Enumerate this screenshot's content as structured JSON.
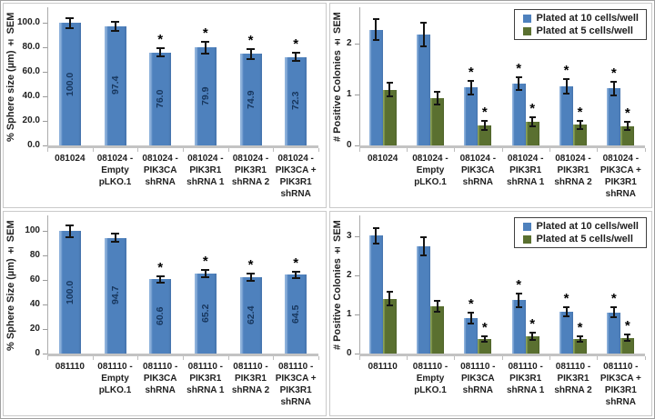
{
  "chart_data": [
    {
      "id": "sphere-081024",
      "type": "bar",
      "ylabel": "% Sphere size (µm) ± SEM",
      "ymax": 110,
      "grid": false,
      "legend": false,
      "yticks": [
        {
          "label": "100.0",
          "v": 100
        },
        {
          "label": "80.0",
          "v": 80
        },
        {
          "label": "60.0",
          "v": 60
        },
        {
          "label": "40.0",
          "v": 40
        },
        {
          "label": "20.0",
          "v": 20
        },
        {
          "label": "0.0",
          "v": 0
        }
      ],
      "categories": [
        "081024",
        "081024 -\nEmpty\npLKO.1",
        "081024 -\nPIK3CA\nshRNA",
        "081024 -\nPIK3R1\nshRNA 1",
        "081024 -\nPIK3R1\nshRNA 2",
        "081024 -\nPIK3CA +\nPIK3R1\nshRNA"
      ],
      "series": [
        {
          "color": "#4E81BD",
          "color_class": "blue",
          "values": [
            100.0,
            97.4,
            76.0,
            79.9,
            74.9,
            72.3
          ],
          "errors": [
            4.0,
            3.5,
            3.5,
            4.5,
            4.0,
            3.2
          ],
          "sig": [
            false,
            false,
            true,
            true,
            true,
            true
          ],
          "value_labels": [
            "100.0",
            "97.4",
            "76.0",
            "79.9",
            "74.9",
            "72.3"
          ]
        }
      ]
    },
    {
      "id": "colonies-081024",
      "type": "bar",
      "ylabel": "# Positive Colonies ± SEM",
      "ymax": 2.65,
      "grid": false,
      "legend": true,
      "legend_position": "top-right",
      "yticks": [
        {
          "label": "2",
          "v": 2
        },
        {
          "label": "1",
          "v": 1
        },
        {
          "label": "0",
          "v": 0
        }
      ],
      "categories": [
        "081024",
        "081024 -\nEmpty\npLKO.1",
        "081024 -\nPIK3CA\nshRNA",
        "081024 -\nPIK3R1\nshRNA 1",
        "081024 -\nPIK3R1\nshRNA 2",
        "081024 -\nPIK3CA +\nPIK3R1\nshRNA"
      ],
      "series": [
        {
          "name": "Plated at 10 cells/well",
          "color": "#4E81BD",
          "color_class": "blue",
          "values": [
            2.28,
            2.18,
            1.14,
            1.22,
            1.16,
            1.12
          ],
          "errors": [
            0.2,
            0.23,
            0.13,
            0.13,
            0.14,
            0.13
          ],
          "sig": [
            false,
            false,
            true,
            true,
            true,
            true
          ]
        },
        {
          "name": "Plated at 5 cells/well",
          "color": "#5A7030",
          "color_class": "green",
          "values": [
            1.1,
            0.93,
            0.4,
            0.47,
            0.41,
            0.38
          ],
          "errors": [
            0.13,
            0.12,
            0.09,
            0.09,
            0.08,
            0.08
          ],
          "sig": [
            false,
            false,
            true,
            true,
            true,
            true
          ]
        }
      ]
    },
    {
      "id": "sphere-081110",
      "type": "bar",
      "ylabel": "% Sphere Size (µm) ± SEM",
      "ymax": 110,
      "grid": false,
      "legend": false,
      "yticks": [
        {
          "label": "100",
          "v": 100
        },
        {
          "label": "80",
          "v": 80
        },
        {
          "label": "60",
          "v": 60
        },
        {
          "label": "40",
          "v": 40
        },
        {
          "label": "20",
          "v": 20
        },
        {
          "label": "0",
          "v": 0
        }
      ],
      "categories": [
        "081110",
        "081110 -\nEmpty\npLKO.1",
        "081110 -\nPIK3CA\nshRNA",
        "081110 -\nPIK3R1\nshRNA 1",
        "081110 -\nPIK3R1\nshRNA 2",
        "081110 -\nPIK3CA +\nPIK3R1\nshRNA"
      ],
      "series": [
        {
          "color": "#4E81BD",
          "color_class": "blue",
          "values": [
            100.0,
            94.7,
            60.6,
            65.2,
            62.4,
            64.5
          ],
          "errors": [
            4.5,
            3.5,
            2.5,
            3.0,
            3.0,
            2.5
          ],
          "sig": [
            false,
            false,
            true,
            true,
            true,
            true
          ],
          "value_labels": [
            "100.0",
            "94.7",
            "60.6",
            "65.2",
            "62.4",
            "64.5"
          ]
        }
      ]
    },
    {
      "id": "colonies-081110",
      "type": "bar",
      "ylabel": "# Positive Colonies ± SEM",
      "ymax": 3.45,
      "grid": false,
      "legend": true,
      "legend_position": "top-right",
      "yticks": [
        {
          "label": "3",
          "v": 3
        },
        {
          "label": "2",
          "v": 2
        },
        {
          "label": "1",
          "v": 1
        },
        {
          "label": "0",
          "v": 0
        }
      ],
      "categories": [
        "081110",
        "081110 -\nEmpty\npLKO.1",
        "081110 -\nPIK3CA\nshRNA",
        "081110 -\nPIK3R1\nshRNA 1",
        "081110 -\nPIK3R1\nshRNA 2",
        "081110 -\nPIK3CA +\nPIK3R1\nshRNA"
      ],
      "series": [
        {
          "name": "Plated at 10 cells/well",
          "color": "#4E81BD",
          "color_class": "blue",
          "values": [
            3.02,
            2.75,
            0.91,
            1.37,
            1.07,
            1.06
          ],
          "errors": [
            0.2,
            0.23,
            0.13,
            0.17,
            0.12,
            0.12
          ],
          "sig": [
            false,
            false,
            true,
            true,
            true,
            true
          ]
        },
        {
          "name": "Plated at 5 cells/well",
          "color": "#5A7030",
          "color_class": "green",
          "values": [
            1.41,
            1.21,
            0.37,
            0.44,
            0.37,
            0.4
          ],
          "errors": [
            0.17,
            0.14,
            0.07,
            0.1,
            0.07,
            0.08
          ],
          "sig": [
            false,
            false,
            true,
            true,
            true,
            true
          ]
        }
      ]
    }
  ]
}
